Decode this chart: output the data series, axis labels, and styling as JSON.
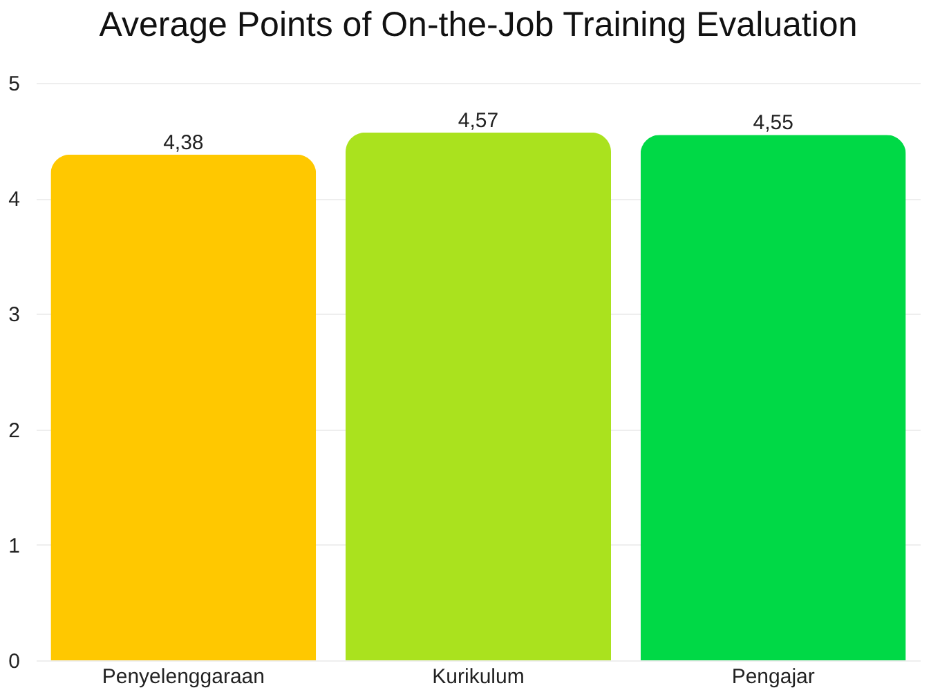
{
  "chart_data": {
    "type": "bar",
    "title": "Average Points of On-the-Job Training Evaluation",
    "categories": [
      "Penyelenggaraan",
      "Kurikulum",
      "Pengajar"
    ],
    "values": [
      4.38,
      4.57,
      4.55
    ],
    "colors": [
      "#ffc800",
      "#aae21e",
      "#00d946"
    ],
    "value_labels": [
      "4,38",
      "4,57",
      "4,55"
    ],
    "ylim": [
      0,
      5
    ],
    "yticks": [
      0,
      1,
      2,
      3,
      4,
      5
    ],
    "grid": "y"
  }
}
